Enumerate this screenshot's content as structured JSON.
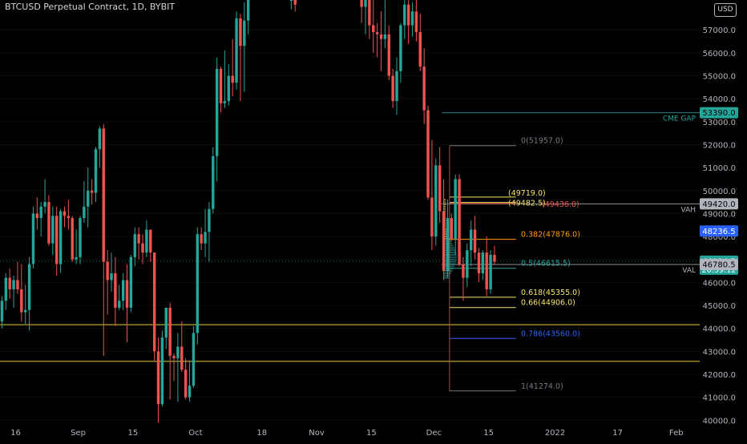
{
  "header": {
    "title": "BTCUSD Perpetual Contract, 1D, BYBIT",
    "currency": "USD"
  },
  "colors": {
    "up": "#26a69a",
    "down": "#ef5350",
    "axis_text": "#b2b5be",
    "fib": "#787b86",
    "fib_yellow": "#f5e663",
    "fib_orange": "#ff9800",
    "fib_blue": "#2962ff",
    "yellow_line": "#ffeb3b"
  },
  "chart_data": {
    "type": "candlestick",
    "title": "BTCUSD Perpetual Contract, 1D, BYBIT",
    "y_axis": {
      "position": "right",
      "range": [
        39800,
        58300
      ],
      "ticks": [
        "40000.0",
        "41000.0",
        "42000.0",
        "43000.0",
        "44000.0",
        "45000.0",
        "46000.0",
        "47000.0",
        "48000.0",
        "49000.0",
        "50000.0",
        "51000.0",
        "52000.0",
        "53000.0",
        "54000.0",
        "55000.0",
        "56000.0",
        "57000.0"
      ]
    },
    "x_axis": {
      "range": [
        "2021-08-12",
        "2022-02-07"
      ],
      "ticks": [
        {
          "label": "16",
          "date": "2021-08-16"
        },
        {
          "label": "Sep",
          "date": "2021-09-01"
        },
        {
          "label": "15",
          "date": "2021-09-15"
        },
        {
          "label": "Oct",
          "date": "2021-10-01"
        },
        {
          "label": "18",
          "date": "2021-10-18"
        },
        {
          "label": "Nov",
          "date": "2021-11-01"
        },
        {
          "label": "15",
          "date": "2021-11-15"
        },
        {
          "label": "Dec",
          "date": "2021-12-01"
        },
        {
          "label": "15",
          "date": "2021-12-15"
        },
        {
          "label": "2022",
          "date": "2022-01-01"
        },
        {
          "label": "17",
          "date": "2022-01-17"
        },
        {
          "label": "Feb",
          "date": "2022-02-01"
        }
      ]
    },
    "candles": [
      {
        "d": "2021-08-12",
        "o": 44300,
        "h": 45400,
        "l": 44000,
        "c": 45200
      },
      {
        "d": "2021-08-13",
        "o": 45200,
        "h": 46400,
        "l": 44800,
        "c": 46200
      },
      {
        "d": "2021-08-14",
        "o": 46200,
        "h": 46600,
        "l": 45300,
        "c": 45700
      },
      {
        "d": "2021-08-15",
        "o": 45700,
        "h": 46300,
        "l": 44900,
        "c": 46100
      },
      {
        "d": "2021-08-16",
        "o": 46100,
        "h": 46900,
        "l": 45500,
        "c": 45700
      },
      {
        "d": "2021-08-17",
        "o": 45700,
        "h": 46800,
        "l": 44300,
        "c": 44700
      },
      {
        "d": "2021-08-18",
        "o": 44700,
        "h": 45900,
        "l": 44200,
        "c": 44800
      },
      {
        "d": "2021-08-19",
        "o": 44800,
        "h": 47100,
        "l": 43900,
        "c": 46800
      },
      {
        "d": "2021-08-20",
        "o": 46800,
        "h": 49300,
        "l": 46600,
        "c": 49000
      },
      {
        "d": "2021-08-21",
        "o": 49000,
        "h": 49700,
        "l": 48300,
        "c": 48800
      },
      {
        "d": "2021-08-22",
        "o": 48800,
        "h": 49500,
        "l": 48000,
        "c": 49300
      },
      {
        "d": "2021-08-23",
        "o": 49300,
        "h": 50500,
        "l": 49000,
        "c": 49500
      },
      {
        "d": "2021-08-24",
        "o": 49500,
        "h": 49800,
        "l": 47600,
        "c": 47700
      },
      {
        "d": "2021-08-25",
        "o": 47700,
        "h": 49300,
        "l": 47200,
        "c": 48900
      },
      {
        "d": "2021-08-26",
        "o": 48900,
        "h": 49300,
        "l": 46300,
        "c": 46800
      },
      {
        "d": "2021-08-27",
        "o": 46800,
        "h": 49200,
        "l": 46400,
        "c": 49100
      },
      {
        "d": "2021-08-28",
        "o": 49100,
        "h": 49300,
        "l": 48400,
        "c": 48900
      },
      {
        "d": "2021-08-29",
        "o": 48900,
        "h": 49600,
        "l": 48300,
        "c": 48800
      },
      {
        "d": "2021-08-30",
        "o": 48800,
        "h": 48900,
        "l": 46900,
        "c": 47000
      },
      {
        "d": "2021-08-31",
        "o": 47000,
        "h": 48300,
        "l": 46800,
        "c": 47100
      },
      {
        "d": "2021-09-01",
        "o": 47100,
        "h": 48900,
        "l": 46800,
        "c": 48800
      },
      {
        "d": "2021-09-02",
        "o": 48800,
        "h": 50400,
        "l": 48600,
        "c": 49300
      },
      {
        "d": "2021-09-03",
        "o": 49300,
        "h": 51000,
        "l": 48400,
        "c": 50000
      },
      {
        "d": "2021-09-04",
        "o": 50000,
        "h": 50500,
        "l": 49400,
        "c": 49900
      },
      {
        "d": "2021-09-05",
        "o": 49900,
        "h": 51900,
        "l": 49500,
        "c": 51800
      },
      {
        "d": "2021-09-06",
        "o": 51800,
        "h": 52800,
        "l": 51000,
        "c": 52700
      },
      {
        "d": "2021-09-07",
        "o": 52700,
        "h": 52900,
        "l": 42800,
        "c": 46900
      },
      {
        "d": "2021-09-08",
        "o": 46900,
        "h": 47400,
        "l": 44600,
        "c": 46100
      },
      {
        "d": "2021-09-09",
        "o": 46100,
        "h": 47300,
        "l": 45600,
        "c": 46400
      },
      {
        "d": "2021-09-10",
        "o": 46400,
        "h": 47100,
        "l": 44100,
        "c": 44900
      },
      {
        "d": "2021-09-11",
        "o": 44900,
        "h": 45900,
        "l": 44800,
        "c": 45200
      },
      {
        "d": "2021-09-12",
        "o": 45200,
        "h": 46400,
        "l": 44800,
        "c": 46100
      },
      {
        "d": "2021-09-13",
        "o": 46100,
        "h": 46800,
        "l": 43400,
        "c": 44900
      },
      {
        "d": "2021-09-14",
        "o": 44900,
        "h": 47200,
        "l": 44700,
        "c": 47100
      },
      {
        "d": "2021-09-15",
        "o": 47100,
        "h": 48400,
        "l": 46700,
        "c": 48100
      },
      {
        "d": "2021-09-16",
        "o": 48100,
        "h": 48400,
        "l": 47000,
        "c": 47700
      },
      {
        "d": "2021-09-17",
        "o": 47700,
        "h": 48100,
        "l": 46800,
        "c": 47300
      },
      {
        "d": "2021-09-18",
        "o": 47300,
        "h": 48700,
        "l": 47100,
        "c": 48300
      },
      {
        "d": "2021-09-19",
        "o": 48300,
        "h": 48300,
        "l": 46900,
        "c": 47300
      },
      {
        "d": "2021-09-20",
        "o": 47300,
        "h": 47300,
        "l": 42600,
        "c": 43000
      },
      {
        "d": "2021-09-21",
        "o": 43000,
        "h": 43600,
        "l": 39900,
        "c": 40700
      },
      {
        "d": "2021-09-22",
        "o": 40700,
        "h": 43900,
        "l": 40600,
        "c": 43600
      },
      {
        "d": "2021-09-23",
        "o": 43600,
        "h": 44900,
        "l": 43100,
        "c": 44900
      },
      {
        "d": "2021-09-24",
        "o": 44900,
        "h": 45100,
        "l": 40900,
        "c": 42800
      },
      {
        "d": "2021-09-25",
        "o": 42800,
        "h": 42900,
        "l": 41700,
        "c": 42700
      },
      {
        "d": "2021-09-26",
        "o": 42700,
        "h": 43800,
        "l": 40800,
        "c": 43200
      },
      {
        "d": "2021-09-27",
        "o": 43200,
        "h": 44300,
        "l": 42100,
        "c": 42200
      },
      {
        "d": "2021-09-28",
        "o": 42200,
        "h": 42700,
        "l": 40900,
        "c": 41000
      },
      {
        "d": "2021-09-29",
        "o": 41000,
        "h": 42600,
        "l": 40800,
        "c": 41500
      },
      {
        "d": "2021-09-30",
        "o": 41500,
        "h": 44100,
        "l": 41400,
        "c": 43800
      },
      {
        "d": "2021-10-01",
        "o": 43800,
        "h": 48400,
        "l": 43300,
        "c": 48100
      },
      {
        "d": "2021-10-02",
        "o": 48100,
        "h": 48400,
        "l": 47400,
        "c": 47700
      },
      {
        "d": "2021-10-03",
        "o": 47700,
        "h": 49200,
        "l": 47100,
        "c": 48200
      },
      {
        "d": "2021-10-04",
        "o": 48200,
        "h": 49500,
        "l": 46900,
        "c": 49200
      },
      {
        "d": "2021-10-05",
        "o": 49200,
        "h": 51900,
        "l": 49000,
        "c": 51500
      },
      {
        "d": "2021-10-06",
        "o": 51500,
        "h": 55800,
        "l": 50400,
        "c": 55300
      },
      {
        "d": "2021-10-07",
        "o": 55300,
        "h": 55400,
        "l": 53400,
        "c": 53800
      },
      {
        "d": "2021-10-08",
        "o": 53800,
        "h": 56100,
        "l": 53600,
        "c": 53900
      },
      {
        "d": "2021-10-09",
        "o": 53900,
        "h": 55500,
        "l": 53700,
        "c": 55000
      },
      {
        "d": "2021-10-10",
        "o": 55000,
        "h": 56600,
        "l": 54100,
        "c": 54700
      },
      {
        "d": "2021-10-11",
        "o": 54700,
        "h": 57800,
        "l": 54400,
        "c": 57500
      },
      {
        "d": "2021-10-12",
        "o": 57500,
        "h": 57700,
        "l": 53900,
        "c": 56300
      },
      {
        "d": "2021-10-13",
        "o": 56300,
        "h": 58200,
        "l": 54300,
        "c": 57400
      },
      {
        "d": "2021-10-14",
        "o": 57400,
        "h": 58300,
        "l": 56800,
        "c": 58300
      },
      {
        "d": "2021-10-25",
        "o": 58300,
        "h": 58300,
        "l": 57900,
        "c": 58300
      },
      {
        "d": "2021-10-26",
        "o": 58300,
        "h": 58300,
        "l": 57800,
        "c": 58100
      },
      {
        "d": "2021-11-12",
        "o": 58300,
        "h": 58300,
        "l": 57300,
        "c": 58000
      },
      {
        "d": "2021-11-13",
        "o": 58000,
        "h": 58300,
        "l": 56800,
        "c": 58300
      },
      {
        "d": "2021-11-14",
        "o": 58300,
        "h": 58300,
        "l": 56600,
        "c": 57200
      },
      {
        "d": "2021-11-15",
        "o": 57200,
        "h": 58300,
        "l": 56000,
        "c": 56900
      },
      {
        "d": "2021-11-16",
        "o": 56900,
        "h": 57300,
        "l": 55800,
        "c": 56800
      },
      {
        "d": "2021-11-17",
        "o": 56800,
        "h": 57800,
        "l": 55200,
        "c": 56600
      },
      {
        "d": "2021-11-18",
        "o": 56600,
        "h": 58300,
        "l": 56200,
        "c": 56800
      },
      {
        "d": "2021-11-19",
        "o": 56800,
        "h": 57200,
        "l": 54800,
        "c": 55000
      },
      {
        "d": "2021-11-20",
        "o": 55000,
        "h": 55300,
        "l": 53600,
        "c": 53900
      },
      {
        "d": "2021-11-21",
        "o": 53900,
        "h": 55800,
        "l": 53300,
        "c": 55200
      },
      {
        "d": "2021-11-22",
        "o": 55200,
        "h": 57300,
        "l": 54700,
        "c": 57200
      },
      {
        "d": "2021-11-23",
        "o": 57200,
        "h": 58300,
        "l": 56600,
        "c": 58100
      },
      {
        "d": "2021-11-24",
        "o": 58100,
        "h": 58300,
        "l": 56400,
        "c": 57200
      },
      {
        "d": "2021-11-25",
        "o": 57200,
        "h": 58200,
        "l": 56700,
        "c": 57800
      },
      {
        "d": "2021-11-26",
        "o": 57800,
        "h": 58300,
        "l": 56500,
        "c": 56900
      },
      {
        "d": "2021-11-27",
        "o": 56900,
        "h": 57700,
        "l": 55200,
        "c": 55400
      },
      {
        "d": "2021-11-28",
        "o": 55400,
        "h": 56200,
        "l": 52900,
        "c": 53500
      },
      {
        "d": "2021-11-29",
        "o": 53500,
        "h": 53700,
        "l": 49600,
        "c": 49700
      },
      {
        "d": "2021-11-30",
        "o": 49700,
        "h": 52200,
        "l": 47400,
        "c": 48000
      },
      {
        "d": "2021-12-01",
        "o": 48000,
        "h": 51400,
        "l": 47600,
        "c": 51100
      },
      {
        "d": "2021-12-02",
        "o": 51100,
        "h": 51900,
        "l": 48600,
        "c": 49100
      },
      {
        "d": "2021-12-03",
        "o": 49100,
        "h": 50500,
        "l": 46100,
        "c": 46500
      },
      {
        "d": "2021-12-04",
        "o": 46500,
        "h": 49600,
        "l": 46200,
        "c": 48800
      },
      {
        "d": "2021-12-05",
        "o": 48800,
        "h": 49000,
        "l": 47800,
        "c": 47900
      },
      {
        "d": "2021-12-06",
        "o": 47900,
        "h": 50700,
        "l": 47200,
        "c": 50500
      },
      {
        "d": "2021-12-07",
        "o": 50500,
        "h": 50700,
        "l": 46700,
        "c": 46800
      },
      {
        "d": "2021-12-08",
        "o": 46800,
        "h": 47100,
        "l": 45200,
        "c": 46200
      },
      {
        "d": "2021-12-09",
        "o": 46200,
        "h": 47700,
        "l": 45800,
        "c": 47400
      },
      {
        "d": "2021-12-10",
        "o": 47400,
        "h": 48700,
        "l": 46700,
        "c": 48300
      },
      {
        "d": "2021-12-11",
        "o": 48300,
        "h": 48900,
        "l": 47000,
        "c": 47300
      },
      {
        "d": "2021-12-12",
        "o": 47300,
        "h": 47500,
        "l": 46000,
        "c": 46400
      },
      {
        "d": "2021-12-13",
        "o": 46400,
        "h": 47400,
        "l": 46100,
        "c": 47300
      },
      {
        "d": "2021-12-14",
        "o": 47300,
        "h": 48000,
        "l": 45400,
        "c": 45700
      },
      {
        "d": "2021-12-15",
        "o": 45700,
        "h": 47400,
        "l": 45500,
        "c": 47200
      },
      {
        "d": "2021-12-16",
        "o": 47200,
        "h": 47600,
        "l": 46800,
        "c": 46900
      }
    ],
    "fib": [
      {
        "label": "0(51957.0)",
        "price": 51957,
        "color": "#787b86"
      },
      {
        "label": "(49719.0)",
        "price": 49719,
        "color": "#f5e663"
      },
      {
        "label": "(49482.5)",
        "price": 49482.5,
        "color": "#f5e663"
      },
      {
        "label": "(49436.0)",
        "price": 49436,
        "color": "#ef5350"
      },
      {
        "label": "0.382(47876.0)",
        "price": 47876,
        "color": "#ff9800"
      },
      {
        "label": "0.5(46615.5)",
        "price": 46615.5,
        "color": "#26a69a"
      },
      {
        "label": "0.618(45355.0)",
        "price": 45355,
        "color": "#f5e663"
      },
      {
        "label": "0.66(44906.0)",
        "price": 44906,
        "color": "#f5e663"
      },
      {
        "label": "0.786(43560.0)",
        "price": 43560,
        "color": "#2962ff"
      },
      {
        "label": "1(41274.0)",
        "price": 41274,
        "color": "#787b86"
      }
    ],
    "horizontal_lines": [
      {
        "price": 53390,
        "label": "CME GAP",
        "color": "#26a69a"
      },
      {
        "price": 49420,
        "label": "VAH",
        "color": "#b2b5be"
      },
      {
        "price": 46780.5,
        "label": "VAL",
        "color": "#b2b5be"
      },
      {
        "price": 44160,
        "label": "",
        "color": "#ffeb3b"
      },
      {
        "price": 42560,
        "label": "",
        "color": "#ffeb3b"
      }
    ],
    "price_labels": [
      {
        "text": "53390.0",
        "price": 53390,
        "bg": "#26a69a",
        "fg": "#000000"
      },
      {
        "text": "49420.0",
        "price": 49420,
        "bg": "#b2b5be",
        "fg": "#000000"
      },
      {
        "text": "48236.5",
        "price": 48236.5,
        "bg": "#2962ff",
        "fg": "#ffffff"
      },
      {
        "text": "46924.5",
        "price": 46924.5,
        "bg": "#26a69a",
        "fg": "#ffffff",
        "sub": "20:59:12"
      },
      {
        "text": "46780.5",
        "price": 46780.5,
        "bg": "#b2b5be",
        "fg": "#000000"
      }
    ],
    "last_price": 46924.5,
    "countdown": "20:59:12"
  }
}
